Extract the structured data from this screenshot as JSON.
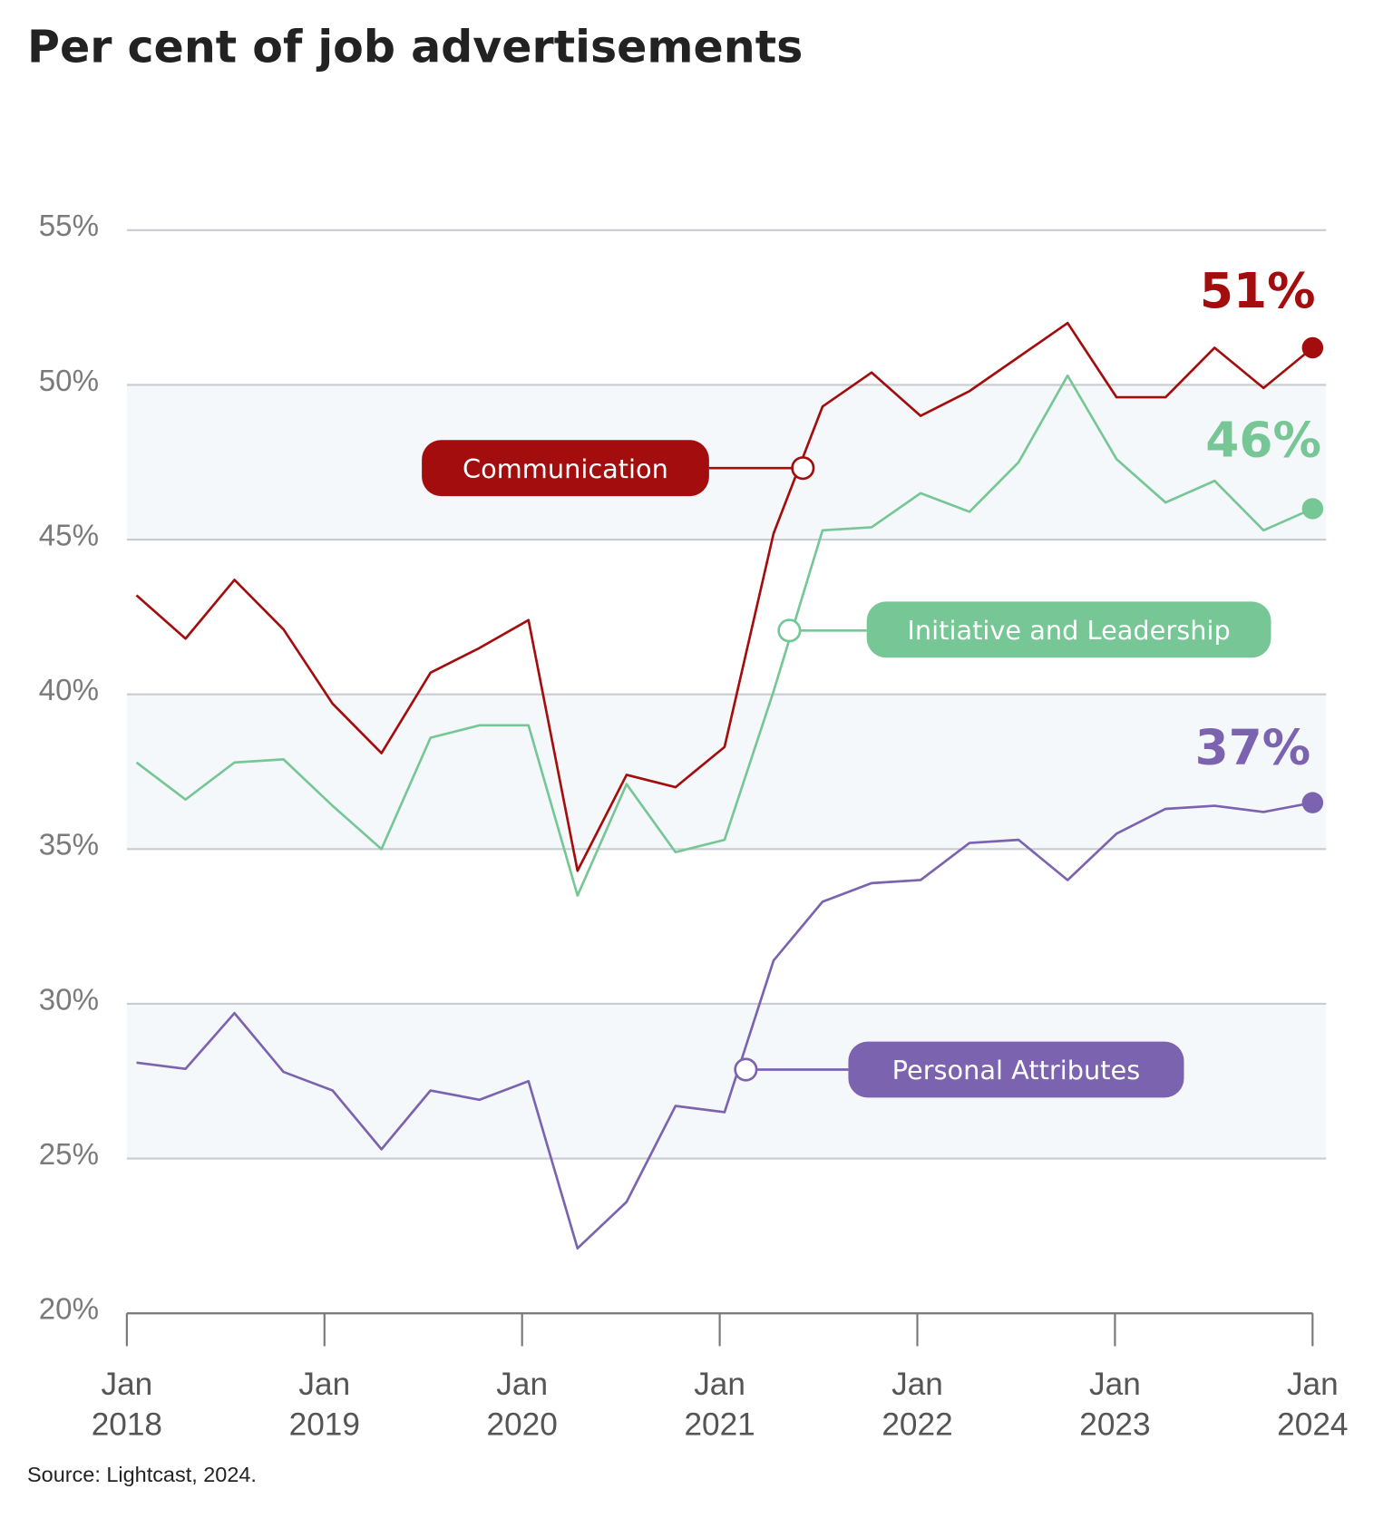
{
  "chart_data": {
    "type": "line",
    "title": "Per cent of job advertisements",
    "source": "Source: Lightcast, 2024.",
    "xlabel": "",
    "ylabel": "",
    "ylim": [
      20,
      55
    ],
    "yticks": [
      "55%",
      "50%",
      "45%",
      "40%",
      "35%",
      "30%",
      "25%",
      "20%"
    ],
    "ytick_values": [
      55,
      50,
      45,
      40,
      35,
      30,
      25,
      20
    ],
    "xticks": [
      {
        "month": "Jan",
        "year": "2018"
      },
      {
        "month": "Jan",
        "year": "2019"
      },
      {
        "month": "Jan",
        "year": "2020"
      },
      {
        "month": "Jan",
        "year": "2021"
      },
      {
        "month": "Jan",
        "year": "2022"
      },
      {
        "month": "Jan",
        "year": "2023"
      },
      {
        "month": "Jan",
        "year": "2024"
      }
    ],
    "grid": true,
    "x": [
      "2018-01",
      "2018-04",
      "2018-07",
      "2018-10",
      "2019-01",
      "2019-04",
      "2019-07",
      "2019-10",
      "2020-01",
      "2020-04",
      "2020-07",
      "2020-10",
      "2021-01",
      "2021-04",
      "2021-07",
      "2021-10",
      "2022-01",
      "2022-04",
      "2022-07",
      "2022-10",
      "2023-01",
      "2023-04",
      "2023-07",
      "2023-10",
      "2024-01"
    ],
    "series": [
      {
        "name": "Communication",
        "color": "#a30d0d",
        "end_label": "51%",
        "values": [
          43.2,
          41.8,
          43.7,
          42.1,
          39.7,
          38.1,
          40.7,
          41.5,
          42.4,
          34.3,
          37.4,
          37.0,
          38.3,
          45.2,
          49.3,
          50.4,
          49.0,
          49.8,
          50.9,
          52.0,
          49.6,
          49.6,
          51.2,
          49.9,
          51.2
        ]
      },
      {
        "name": "Initiative and Leadership",
        "color": "#76c795",
        "end_label": "46%",
        "values": [
          37.8,
          36.6,
          37.8,
          37.9,
          36.4,
          35.0,
          38.6,
          39.0,
          39.0,
          33.5,
          37.1,
          34.9,
          35.3,
          40.1,
          45.3,
          45.4,
          46.5,
          45.9,
          47.5,
          50.3,
          47.6,
          46.2,
          46.9,
          45.3,
          46.0
        ]
      },
      {
        "name": "Personal Attributes",
        "color": "#7b63b0",
        "end_label": "37%",
        "values": [
          28.1,
          27.9,
          29.7,
          27.8,
          27.2,
          25.3,
          27.2,
          26.9,
          27.5,
          22.1,
          23.6,
          26.7,
          26.5,
          31.4,
          33.3,
          33.9,
          34.0,
          35.2,
          35.3,
          34.0,
          35.5,
          36.3,
          36.4,
          36.2,
          36.5
        ]
      }
    ],
    "band_color": "#f5f8fb",
    "gridline_color": "#c8ccd0"
  }
}
